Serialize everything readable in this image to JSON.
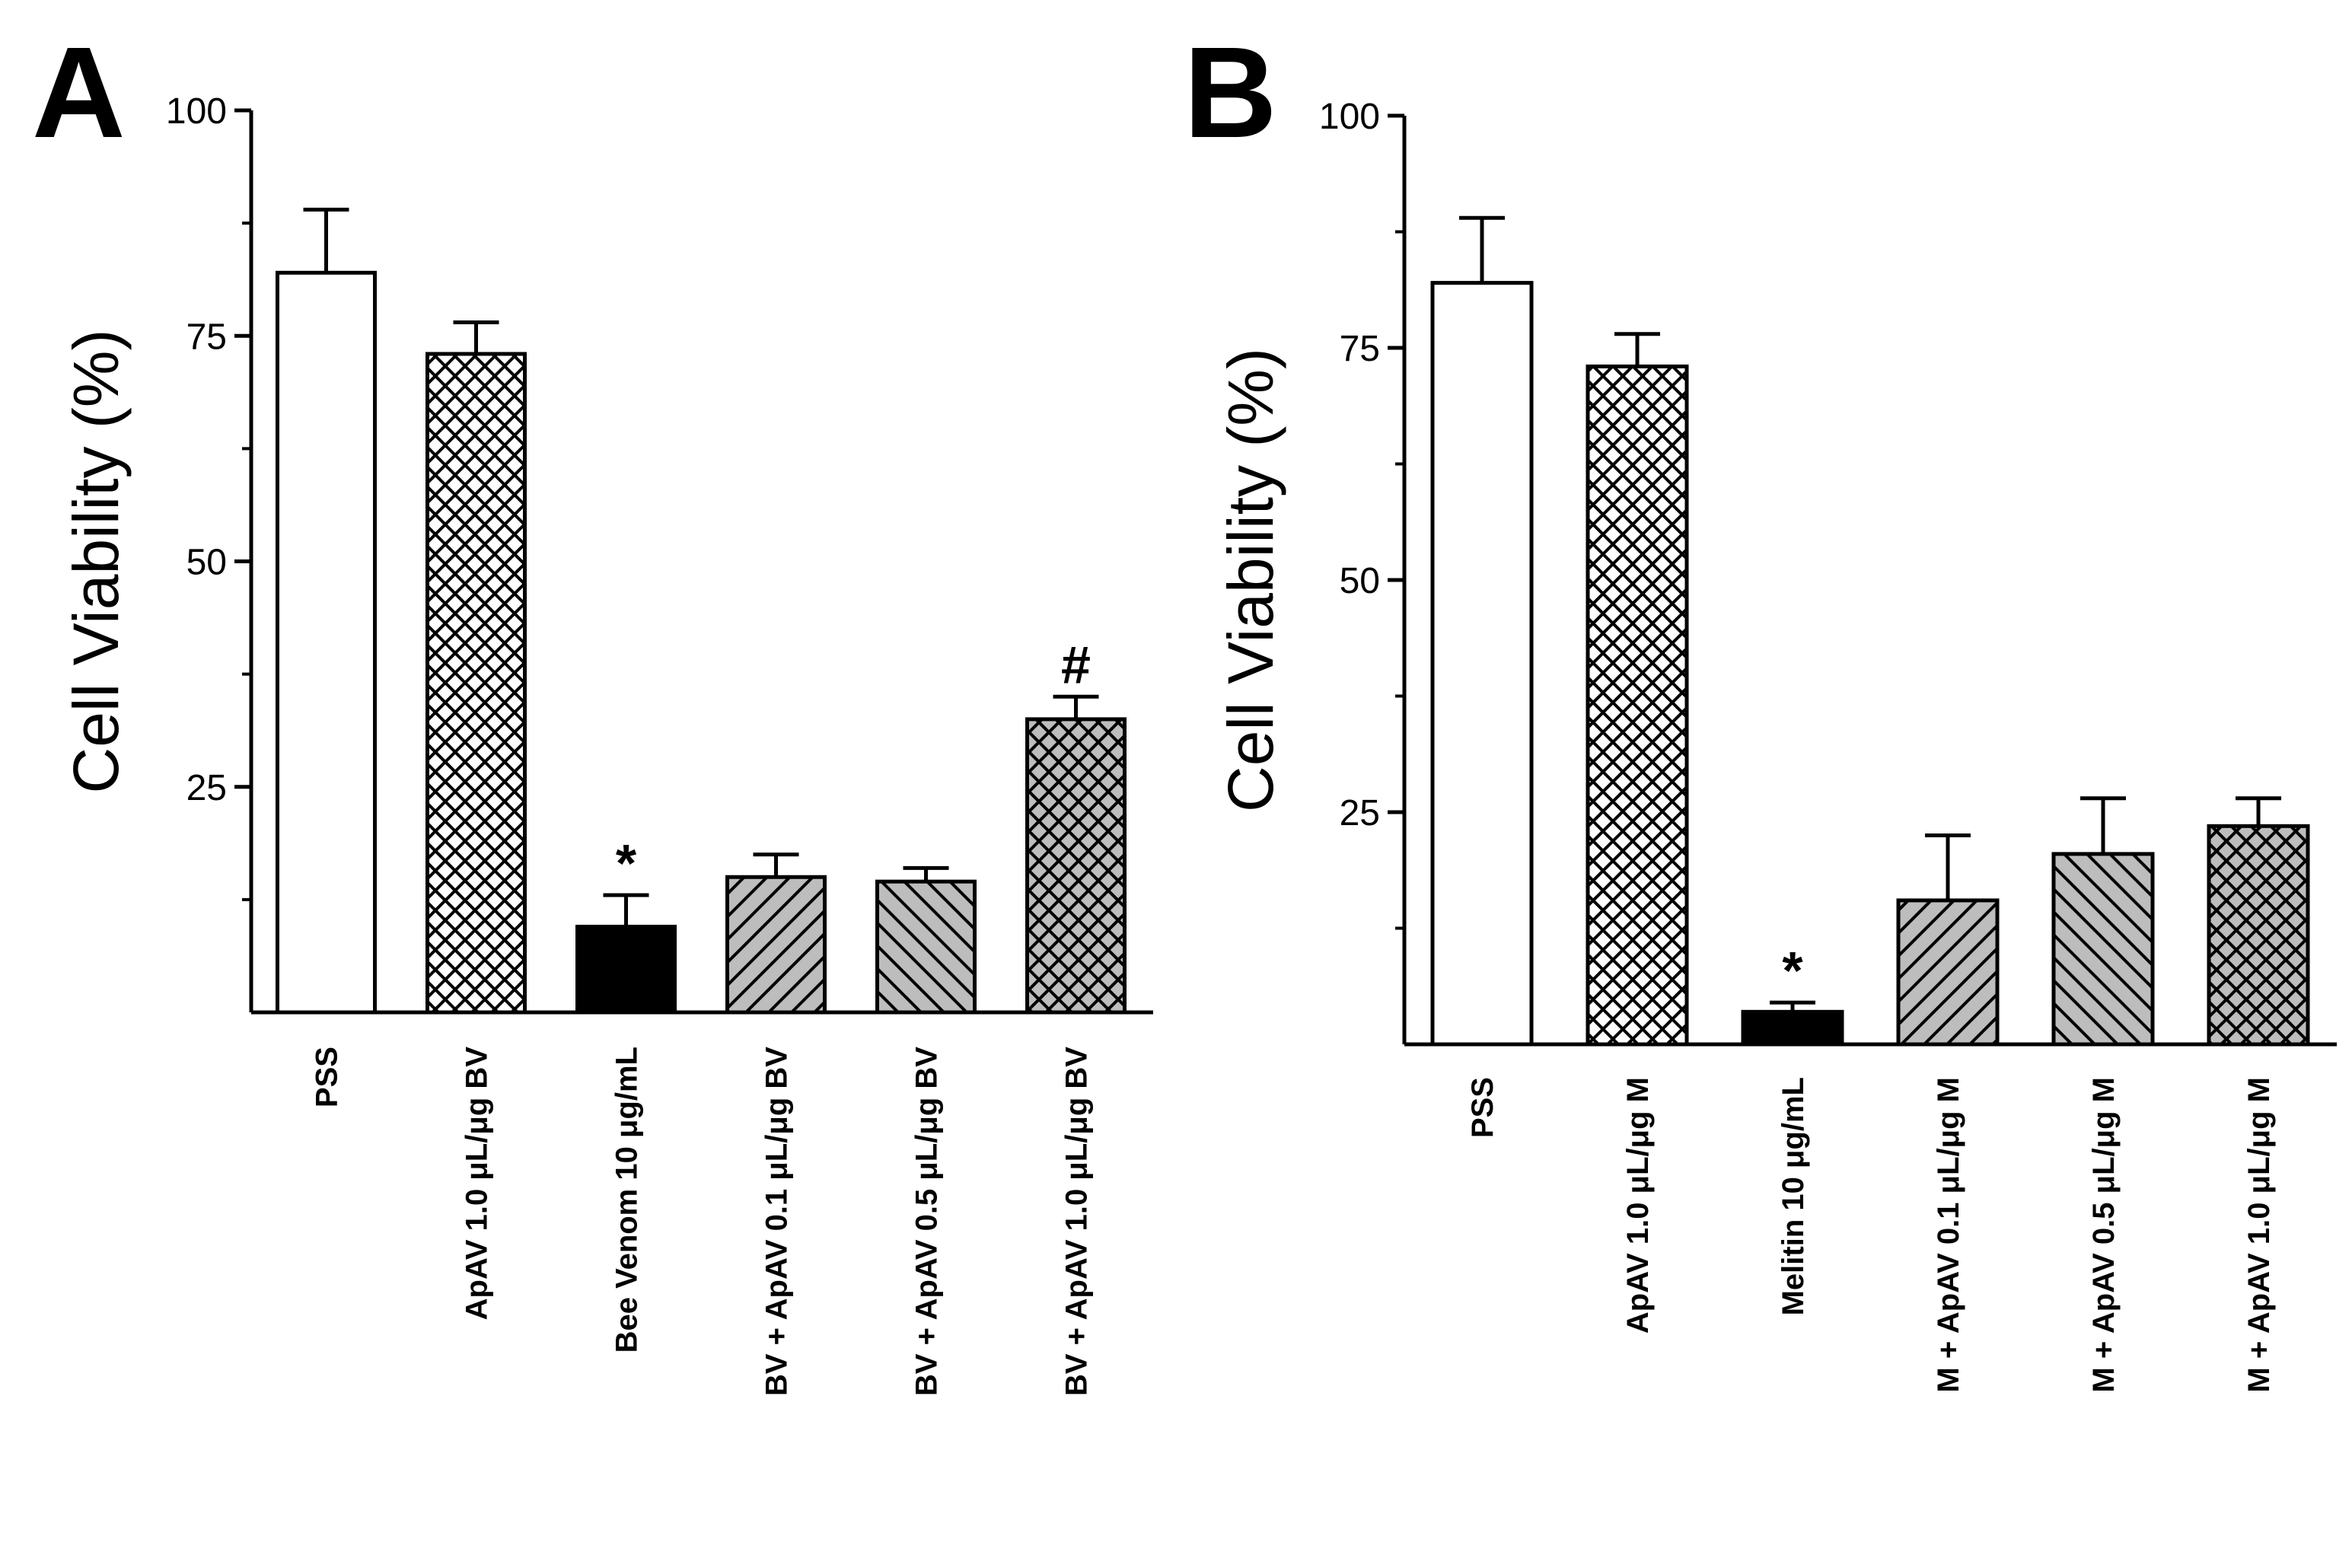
{
  "chart_data": [
    {
      "type": "bar",
      "panel_label": "A",
      "title": "",
      "xlabel": "",
      "ylabel": "Cell Viability (%)",
      "ylim": [
        0,
        100
      ],
      "yticks": [
        25,
        50,
        75,
        100
      ],
      "categories": [
        "PSS",
        "ApAV 1.0 μL/μg BV",
        "Bee Venom 10 μg/mL",
        "BV + ApAV 0.1 μL/μg BV",
        "BV + ApAV 0.5 μL/μg BV",
        "BV + ApAV 1.0 μL/μg BV"
      ],
      "values": [
        82,
        73,
        9.5,
        15,
        14.5,
        32.5
      ],
      "errors": [
        7,
        3.5,
        3.5,
        2.5,
        1.5,
        2.5
      ],
      "fills": [
        "white",
        "crosshatch",
        "black",
        "diag-up-gray",
        "diag-down-gray",
        "crosshatch-gray"
      ],
      "annotations": [
        "",
        "",
        "*",
        "",
        "",
        "#"
      ],
      "grid": false,
      "legend": "none"
    },
    {
      "type": "bar",
      "panel_label": "B",
      "title": "",
      "xlabel": "",
      "ylabel": "Cell Viability (%)",
      "ylim": [
        0,
        100
      ],
      "yticks": [
        25,
        50,
        75,
        100
      ],
      "categories": [
        "PSS",
        "ApAV 1.0 μL/μg M",
        "Melitin 10 μg/mL",
        "M + ApAV 0.1 μL/μg M",
        "M + ApAV 0.5 μL/μg M",
        "M + ApAV 1.0 μL/μg M"
      ],
      "values": [
        82,
        73,
        3.5,
        15.5,
        20.5,
        23.5
      ],
      "errors": [
        7,
        3.5,
        1,
        7,
        6,
        3
      ],
      "fills": [
        "white",
        "crosshatch",
        "black",
        "diag-up-gray",
        "diag-down-gray",
        "crosshatch-gray"
      ],
      "annotations": [
        "",
        "",
        "*",
        "",
        "",
        ""
      ],
      "grid": false,
      "legend": "none"
    }
  ]
}
